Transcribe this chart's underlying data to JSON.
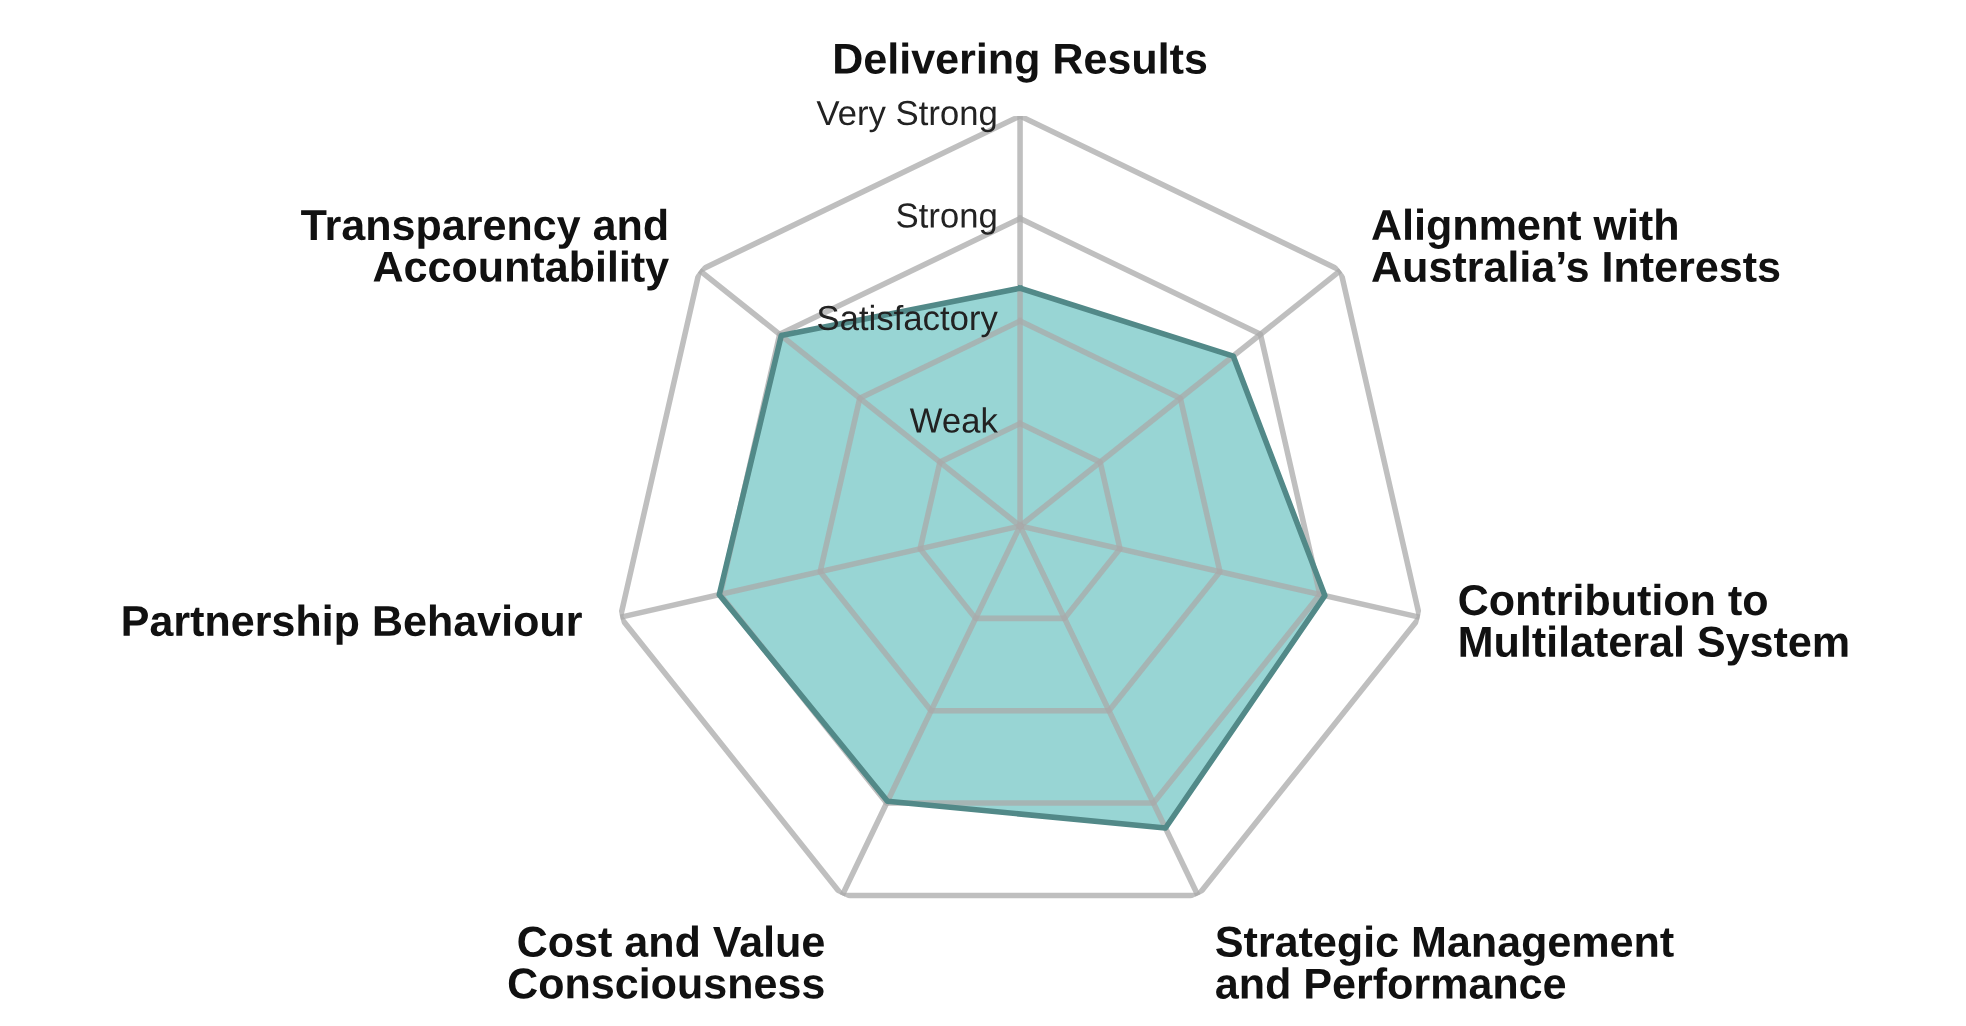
{
  "chart_data": {
    "type": "radar",
    "categories": [
      "Delivering Results",
      "Alignment with\nAustralia’s Interests",
      "Contribution to\nMultilateral System",
      "Strategic Management\nand Performance",
      "Cost and Value\nConsciousness",
      "Partnership Behaviour",
      "Transparency and\nAccountability"
    ],
    "series": [
      {
        "color": "#98d5d4",
        "values": [
          2.32,
          2.66,
          3.05,
          3.27,
          2.98,
          3.01,
          2.98
        ]
      }
    ],
    "ylim": [
      0,
      4
    ],
    "yticks": [
      {
        "value": 1,
        "label": "Weak"
      },
      {
        "value": 2,
        "label": "Satisfactory"
      },
      {
        "value": 3,
        "label": "Strong"
      },
      {
        "value": 4,
        "label": "Very Strong"
      }
    ],
    "grid": true
  }
}
